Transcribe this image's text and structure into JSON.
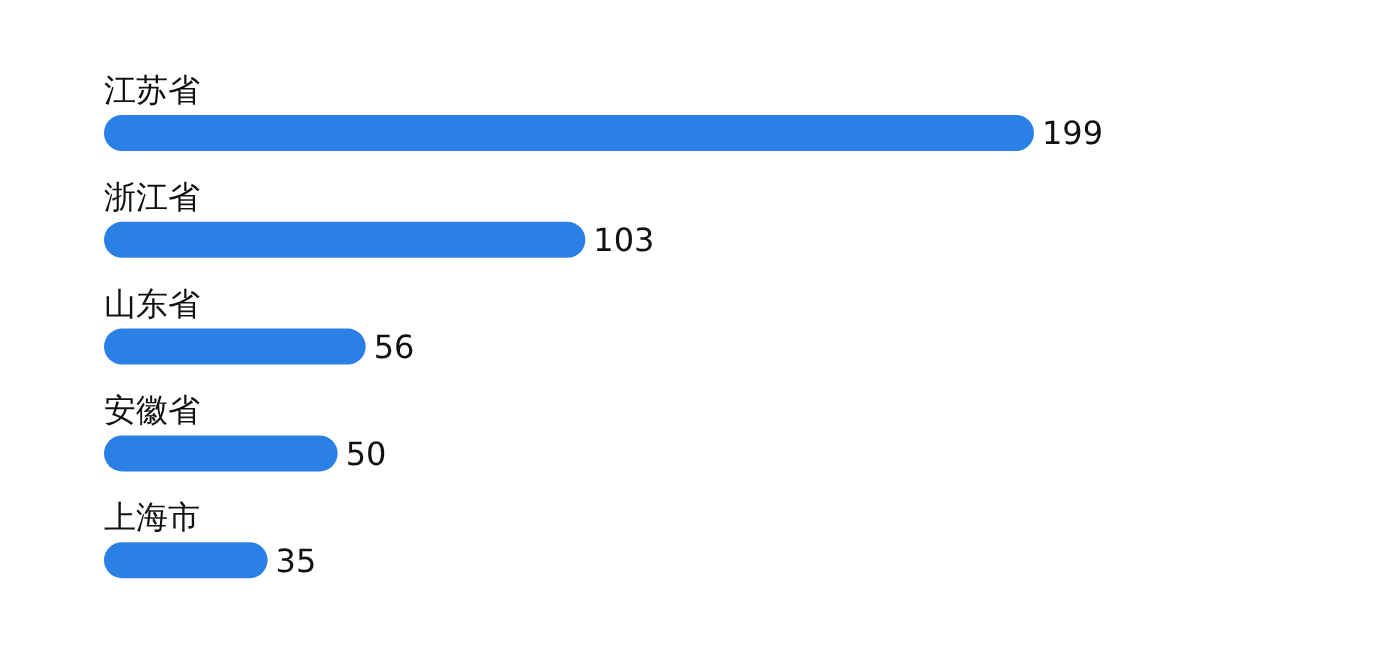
{
  "chart_data": {
    "type": "bar",
    "orientation": "horizontal",
    "categories": [
      "江苏省",
      "浙江省",
      "山东省",
      "安徽省",
      "上海市"
    ],
    "values": [
      199,
      103,
      56,
      50,
      35
    ],
    "color": "#2a80e4",
    "data_labels": true
  }
}
